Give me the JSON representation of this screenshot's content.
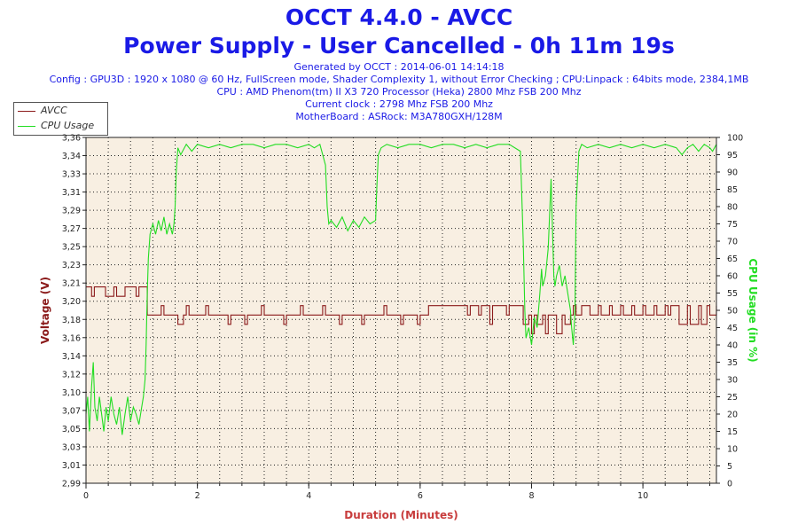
{
  "title": "OCCT 4.4.0 - AVCC",
  "subtitle": "Power Supply - User Cancelled - 0h 11m 19s",
  "info_lines": [
    "Generated by OCCT : 2014-06-01 14:14:18",
    "Config : GPU3D : 1920 x 1080 @ 60 Hz, FullScreen mode, Shader Complexity 1, without Error Checking ; CPU:Linpack : 64bits mode, 2384,1MB",
    "CPU : AMD Phenom(tm) II X3 720 Processor (Heka) 2800 Mhz FSB 200 Mhz",
    "Current clock : 2798 Mhz FSB 200 Mhz",
    "MotherBoard : ASRock: M3A780GXH/128M"
  ],
  "colors": {
    "title": "#1a1ae6",
    "avcc": "#8b1a1a",
    "cpu": "#22dd22",
    "plot_bg": "#f8efe2",
    "xlabel": "#c83c3c"
  },
  "chart_data": {
    "type": "line",
    "xlabel": "Duration (Minutes)",
    "ylabel_left": "Voltage (V)",
    "ylabel_right": "CPU Usage (in %)",
    "xlim": [
      0,
      11.32
    ],
    "ylim_left": [
      2.99,
      3.36
    ],
    "ylim_right": [
      0,
      100
    ],
    "x_ticks": [
      "0",
      "2",
      "4",
      "6",
      "8",
      "10"
    ],
    "y_ticks_left": [
      "2,99",
      "3,01",
      "3,03",
      "3,05",
      "3,07",
      "3,10",
      "3,12",
      "3,14",
      "3,16",
      "3,18",
      "3,20",
      "3,21",
      "3,23",
      "3,25",
      "3,27",
      "3,29",
      "3,31",
      "3,33",
      "3,34",
      "3,36"
    ],
    "y_ticks_right": [
      "0",
      "5",
      "10",
      "15",
      "20",
      "25",
      "30",
      "35",
      "40",
      "45",
      "50",
      "55",
      "60",
      "65",
      "70",
      "75",
      "80",
      "85",
      "90",
      "95",
      "100"
    ],
    "grid": true,
    "legend_position": "top-left",
    "series": [
      {
        "name": "AVCC",
        "axis": "left",
        "x": [
          0,
          0.1,
          0.15,
          0.3,
          0.35,
          0.5,
          0.55,
          0.7,
          0.75,
          0.9,
          0.95,
          1.05,
          1.1,
          1.3,
          1.35,
          1.4,
          1.6,
          1.65,
          1.75,
          1.8,
          1.85,
          2.1,
          2.15,
          2.2,
          2.5,
          2.55,
          2.6,
          2.8,
          2.85,
          2.9,
          3.1,
          3.15,
          3.2,
          3.5,
          3.55,
          3.6,
          3.8,
          3.85,
          3.9,
          4.2,
          4.25,
          4.3,
          4.5,
          4.55,
          4.6,
          4.9,
          4.95,
          5.0,
          5.3,
          5.35,
          5.4,
          5.6,
          5.65,
          5.7,
          5.9,
          5.95,
          6.0,
          6.1,
          6.15,
          6.2,
          6.8,
          6.85,
          6.9,
          7.0,
          7.05,
          7.1,
          7.2,
          7.25,
          7.3,
          7.5,
          7.55,
          7.6,
          7.8,
          7.85,
          7.95,
          8.0,
          8.05,
          8.1,
          8.2,
          8.25,
          8.3,
          8.4,
          8.45,
          8.55,
          8.6,
          8.7,
          8.75,
          8.8,
          8.9,
          9.0,
          9.05,
          9.2,
          9.25,
          9.4,
          9.45,
          9.6,
          9.65,
          9.8,
          9.85,
          10.0,
          10.05,
          10.2,
          10.25,
          10.4,
          10.45,
          10.5,
          10.6,
          10.65,
          10.8,
          10.85,
          11.0,
          11.05,
          11.15,
          11.2,
          11.32
        ],
        "y": [
          3.2,
          3.19,
          3.2,
          3.2,
          3.19,
          3.2,
          3.19,
          3.2,
          3.2,
          3.19,
          3.2,
          3.2,
          3.17,
          3.17,
          3.18,
          3.17,
          3.17,
          3.16,
          3.17,
          3.18,
          3.17,
          3.17,
          3.18,
          3.17,
          3.17,
          3.16,
          3.17,
          3.17,
          3.16,
          3.17,
          3.17,
          3.18,
          3.17,
          3.17,
          3.16,
          3.17,
          3.17,
          3.18,
          3.17,
          3.17,
          3.18,
          3.17,
          3.17,
          3.16,
          3.17,
          3.17,
          3.16,
          3.17,
          3.17,
          3.18,
          3.17,
          3.17,
          3.16,
          3.17,
          3.17,
          3.16,
          3.17,
          3.17,
          3.18,
          3.18,
          3.18,
          3.17,
          3.18,
          3.18,
          3.17,
          3.18,
          3.18,
          3.16,
          3.18,
          3.18,
          3.17,
          3.18,
          3.18,
          3.16,
          3.17,
          3.15,
          3.17,
          3.16,
          3.17,
          3.15,
          3.17,
          3.17,
          3.15,
          3.17,
          3.16,
          3.17,
          3.18,
          3.17,
          3.18,
          3.18,
          3.17,
          3.18,
          3.17,
          3.18,
          3.17,
          3.18,
          3.17,
          3.18,
          3.17,
          3.18,
          3.17,
          3.18,
          3.17,
          3.18,
          3.17,
          3.18,
          3.18,
          3.16,
          3.18,
          3.16,
          3.18,
          3.16,
          3.18,
          3.17,
          3.18
        ]
      },
      {
        "name": "CPU Usage",
        "axis": "right",
        "x": [
          0,
          0.03,
          0.06,
          0.1,
          0.13,
          0.16,
          0.2,
          0.24,
          0.28,
          0.32,
          0.36,
          0.4,
          0.45,
          0.5,
          0.55,
          0.6,
          0.65,
          0.7,
          0.75,
          0.8,
          0.85,
          0.9,
          0.95,
          1.0,
          1.03,
          1.06,
          1.08,
          1.1,
          1.12,
          1.15,
          1.2,
          1.25,
          1.3,
          1.35,
          1.4,
          1.45,
          1.5,
          1.55,
          1.58,
          1.6,
          1.62,
          1.65,
          1.7,
          1.8,
          1.9,
          2.0,
          2.2,
          2.4,
          2.6,
          2.8,
          3.0,
          3.2,
          3.4,
          3.6,
          3.8,
          4.0,
          4.1,
          4.2,
          4.3,
          4.33,
          4.36,
          4.4,
          4.5,
          4.6,
          4.7,
          4.8,
          4.9,
          5.0,
          5.1,
          5.2,
          5.22,
          5.25,
          5.3,
          5.4,
          5.6,
          5.8,
          6.0,
          6.2,
          6.4,
          6.6,
          6.8,
          7.0,
          7.2,
          7.4,
          7.6,
          7.8,
          7.85,
          7.88,
          7.9,
          7.95,
          8.0,
          8.05,
          8.1,
          8.15,
          8.18,
          8.2,
          8.25,
          8.3,
          8.35,
          8.4,
          8.42,
          8.45,
          8.5,
          8.55,
          8.6,
          8.65,
          8.7,
          8.72,
          8.75,
          8.78,
          8.8,
          8.85,
          8.9,
          9.0,
          9.2,
          9.4,
          9.6,
          9.8,
          10.0,
          10.2,
          10.4,
          10.6,
          10.7,
          10.8,
          10.9,
          11.0,
          11.1,
          11.2,
          11.25,
          11.32
        ],
        "y": [
          20,
          25,
          15,
          28,
          35,
          22,
          18,
          25,
          20,
          15,
          22,
          18,
          25,
          20,
          17,
          22,
          14,
          20,
          25,
          18,
          22,
          20,
          17,
          22,
          25,
          30,
          40,
          55,
          65,
          72,
          75,
          72,
          76,
          73,
          77,
          72,
          75,
          72,
          75,
          80,
          90,
          97,
          95,
          98,
          96,
          98,
          97,
          98,
          97,
          98,
          98,
          97,
          98,
          98,
          97,
          98,
          97,
          98,
          92,
          80,
          75,
          76,
          74,
          77,
          73,
          76,
          74,
          77,
          75,
          76,
          85,
          95,
          97,
          98,
          97,
          98,
          98,
          97,
          98,
          98,
          97,
          98,
          97,
          98,
          98,
          96,
          70,
          50,
          42,
          45,
          40,
          48,
          45,
          55,
          62,
          57,
          60,
          68,
          88,
          60,
          57,
          60,
          63,
          57,
          60,
          55,
          50,
          45,
          40,
          50,
          80,
          96,
          98,
          97,
          98,
          97,
          98,
          97,
          98,
          97,
          98,
          97,
          95,
          97,
          98,
          96,
          98,
          97,
          96,
          98
        ]
      }
    ]
  }
}
